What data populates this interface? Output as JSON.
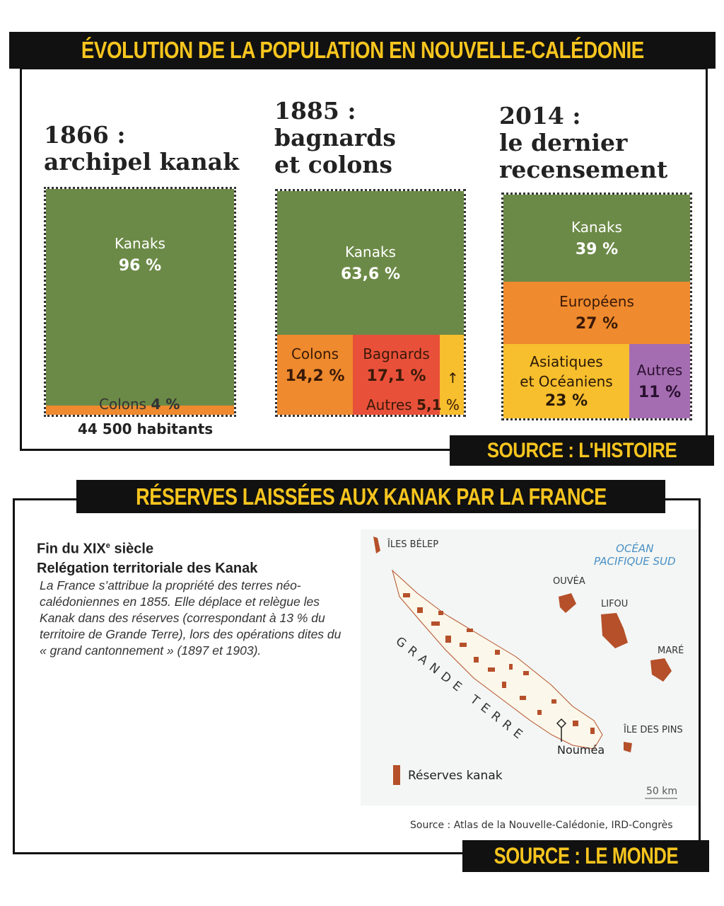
{
  "top": {
    "title": "Évolution de la population en Nouvelle-Calédonie",
    "source": "Source : L'Histoire"
  },
  "chart_data": {
    "type": "table",
    "title": "Évolution de la population en Nouvelle-Calédonie",
    "panels": [
      {
        "year_title": "1866 :",
        "subtitle": "archipel kanak",
        "total": "44 500 habitants",
        "segments": [
          {
            "name": "Kanaks",
            "value": 96,
            "label": "96 %"
          },
          {
            "name": "Colons",
            "value": 4,
            "label": "4 %"
          }
        ]
      },
      {
        "year_title": "1885 :",
        "subtitle_1": "bagnards",
        "subtitle_2": "et colons",
        "segments": [
          {
            "name": "Kanaks",
            "value": 63.6,
            "label": "63,6 %"
          },
          {
            "name": "Colons",
            "value": 14.2,
            "label": "14,2 %"
          },
          {
            "name": "Bagnards",
            "value": 17.1,
            "label": "17,1 %"
          },
          {
            "name": "Autres",
            "value": 5.1,
            "label": "5,1",
            "pct": "%",
            "arrow": "↑"
          }
        ]
      },
      {
        "year_title": "2014 :",
        "subtitle_1": "le dernier",
        "subtitle_2": "recensement",
        "segments": [
          {
            "name": "Kanaks",
            "value": 39,
            "label": "39 %"
          },
          {
            "name": "Européens",
            "value": 27,
            "label": "27 %"
          },
          {
            "name": "Asiatiques",
            "name_2": "et Océaniens",
            "value": 23,
            "label": "23 %"
          },
          {
            "name": "Autres",
            "value": 11,
            "label": "11 %"
          }
        ]
      }
    ]
  },
  "bottom": {
    "title": "Réserves laissées aux Kanak par la France",
    "source": "Source : Le Monde",
    "heading_1": "Fin du XIX",
    "heading_sup": "e",
    "heading_1b": " siècle",
    "heading_2": "Relégation territoriale des Kanak",
    "text": "La France s’attribue la propriété des terres néo-calédoniennes en 1855. Elle déplace et relègue les Kanak dans des réserves (correspondant à 13 % du territoire de Grande Terre), lors des opérations dites du « grand cantonnement » (1897 et 1903).",
    "map": {
      "belep": "ÎLES BÉLEP",
      "ocean_1": "OCÉAN",
      "ocean_2": "PACIFIQUE SUD",
      "ouvea": "OUVÉA",
      "lifou": "LIFOU",
      "mare": "MARÉ",
      "pins": "ÎLE DES PINS",
      "grande_terre": "GRANDE TERRE",
      "noumea": "Nouméa",
      "legend": "Réserves kanak",
      "scale": "50 km",
      "credit": "Source : Atlas de la Nouvelle-Calédonie, IRD-Congrès"
    }
  },
  "colors": {
    "green": "#6c8a47",
    "orange": "#ef8a2e",
    "red": "#e9503a",
    "yellow": "#f7be2d",
    "purple": "#a56db1",
    "banner": "#f7c51e",
    "reserve": "#b5502a"
  }
}
